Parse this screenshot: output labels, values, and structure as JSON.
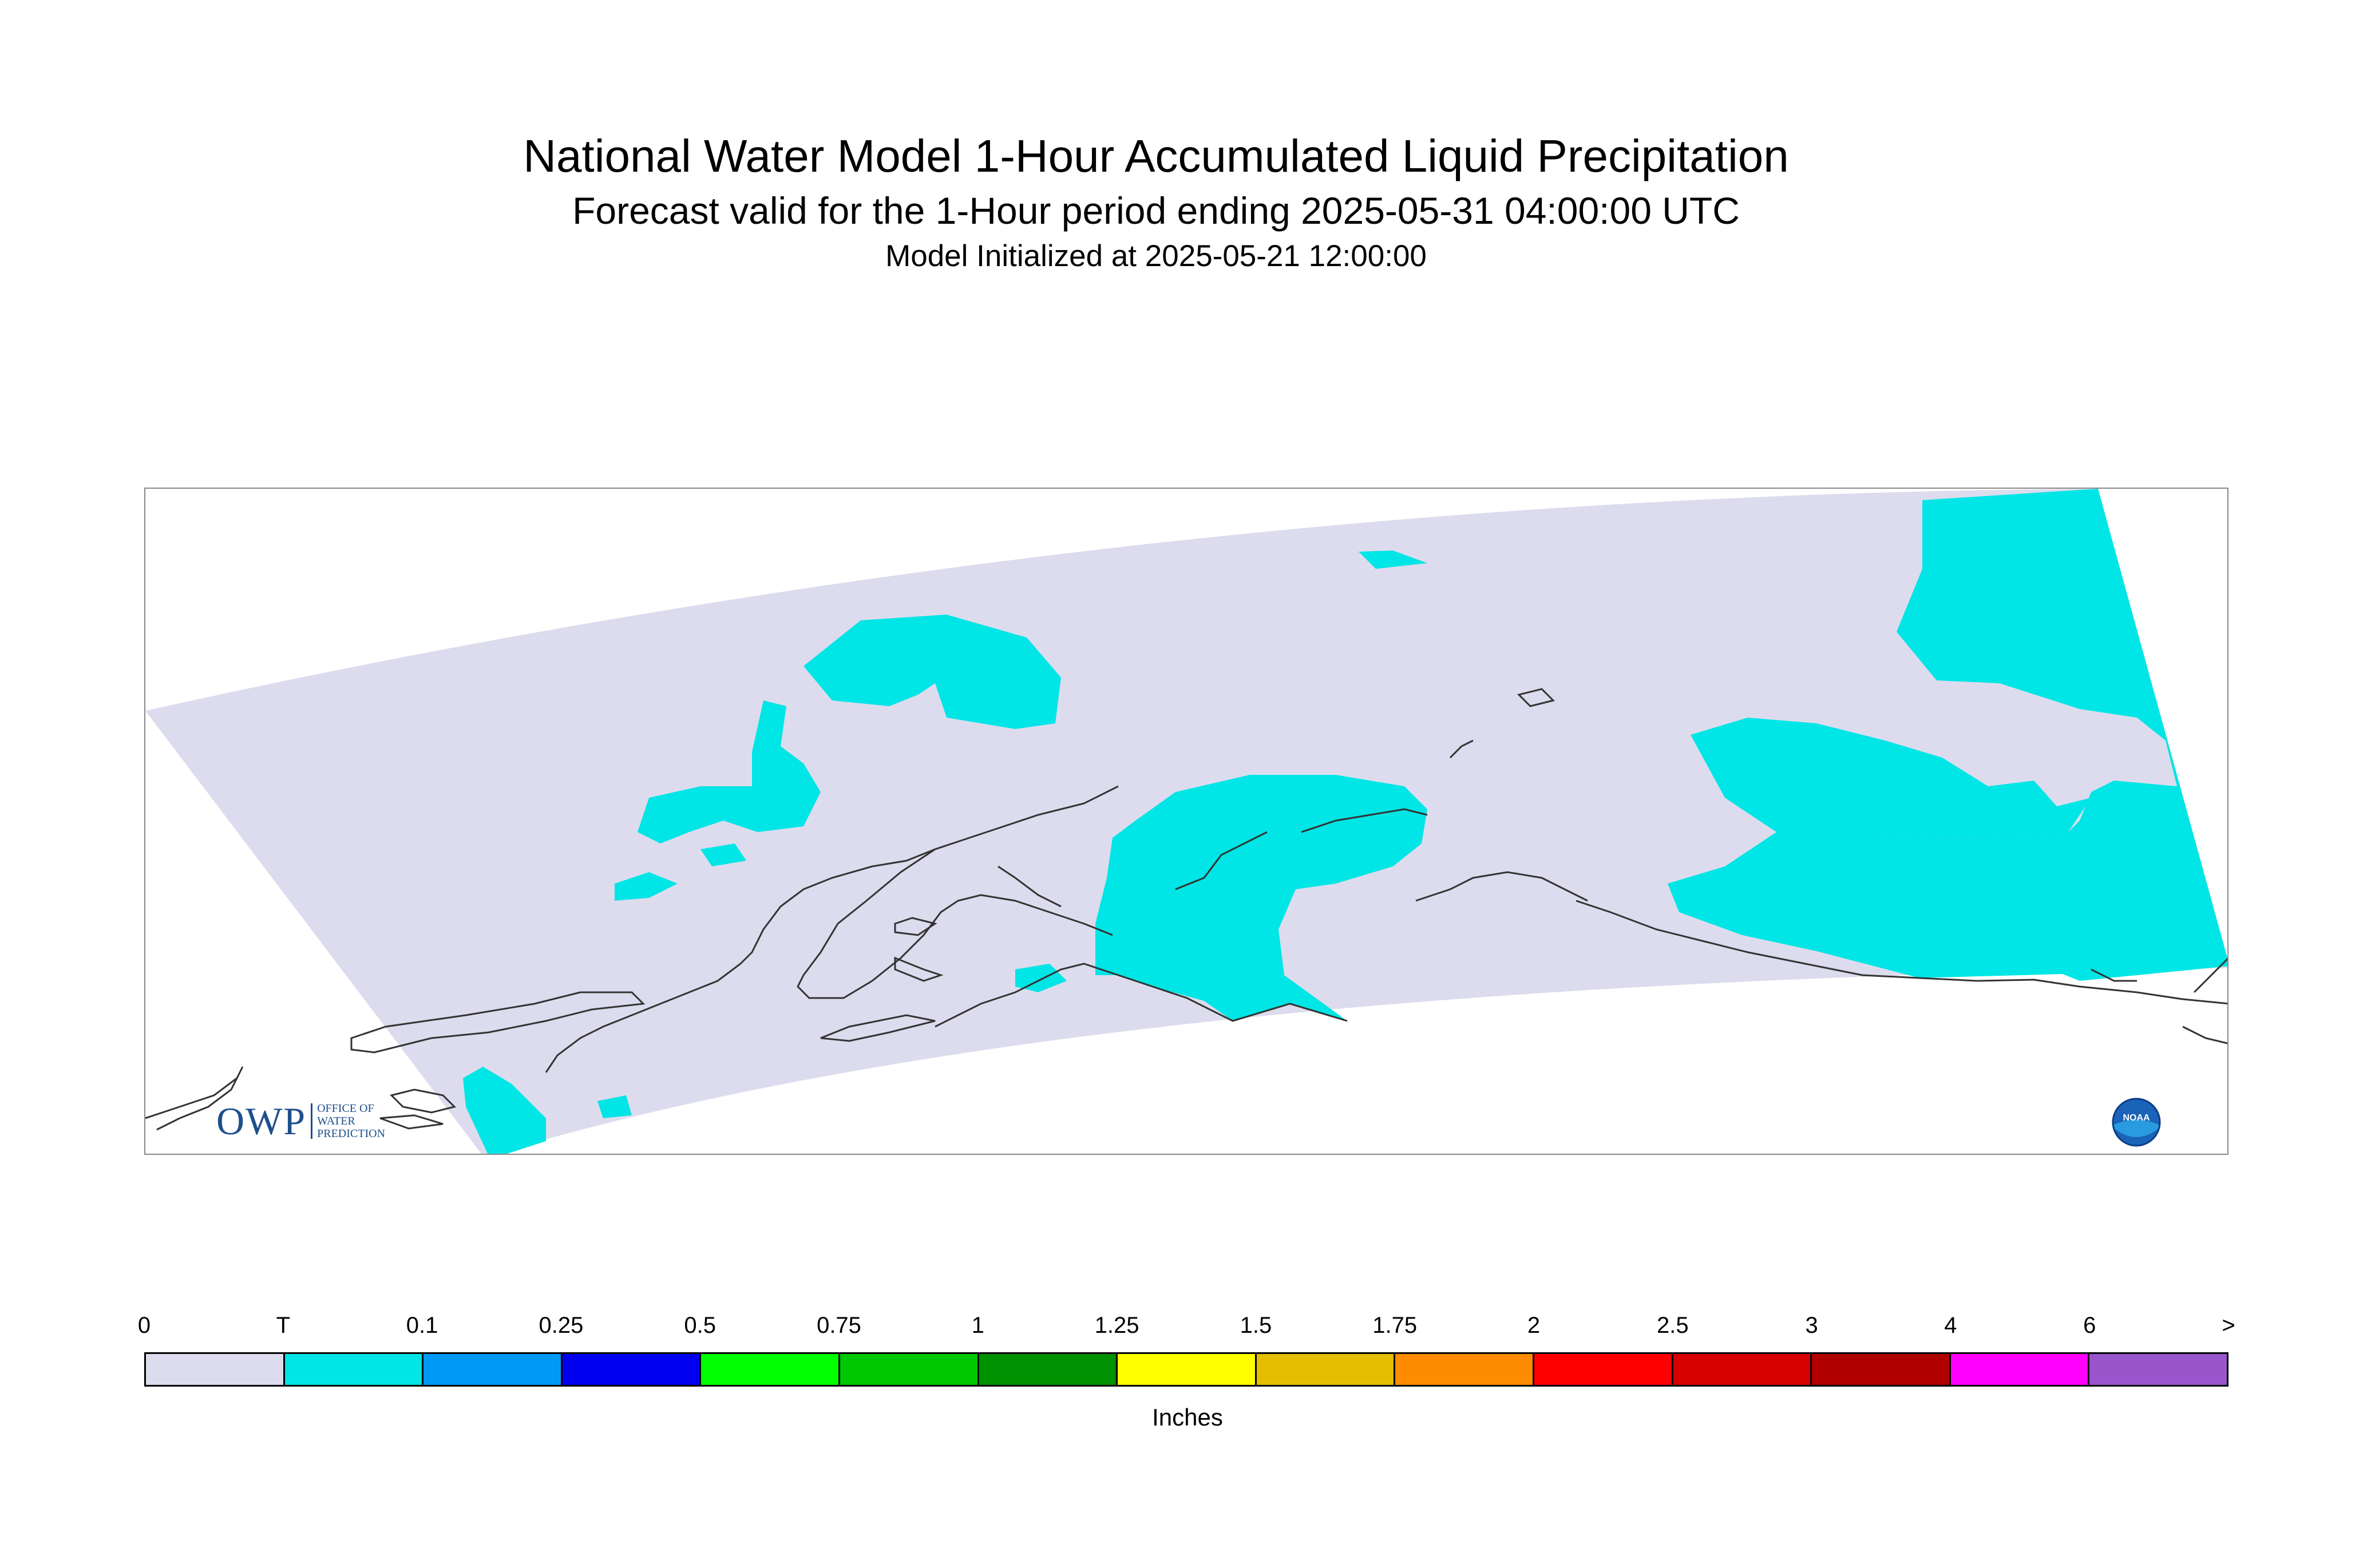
{
  "header": {
    "title": "National Water Model 1-Hour Accumulated Liquid Precipitation",
    "subtitle": "Forecast valid for the 1-Hour period ending 2025-05-31 04:00:00 UTC",
    "init": "Model Initialized at 2025-05-21 12:00:00"
  },
  "logos": {
    "owp_mark": "OWP",
    "owp_text": [
      "OFFICE OF",
      "WATER",
      "PREDICTION"
    ],
    "noaa_mark": "NOAA"
  },
  "map": {
    "domain_fill": "#dcdcee",
    "precip_fill": "#00e5e5",
    "coastline_color": "#333333"
  },
  "legend": {
    "units": "Inches",
    "tick_labels": [
      "0",
      "T",
      "0.1",
      "0.25",
      "0.5",
      "0.75",
      "1",
      "1.25",
      "1.5",
      "1.75",
      "2",
      "2.5",
      "3",
      "4",
      "6",
      ">"
    ],
    "colors": [
      "#dcdcee",
      "#00e5e5",
      "#0099f5",
      "#0000f0",
      "#00ff00",
      "#00c800",
      "#009100",
      "#ffff00",
      "#e5be00",
      "#ff8c00",
      "#ff0000",
      "#d60000",
      "#b00000",
      "#ff00ff",
      "#9955cc"
    ]
  }
}
